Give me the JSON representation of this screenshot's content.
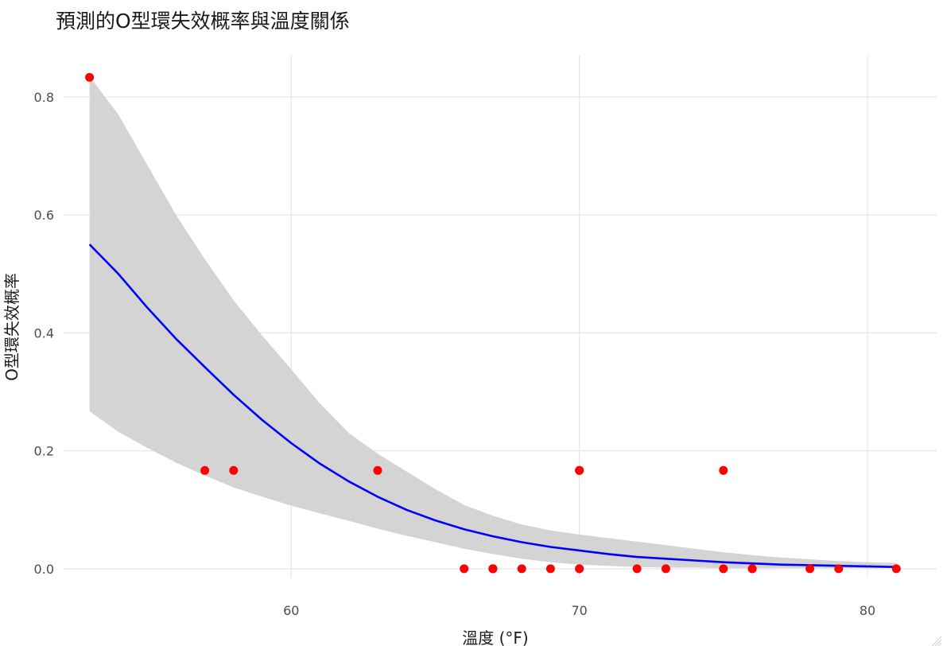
{
  "chart_data": {
    "type": "scatter",
    "title": "預測的O型環失效概率與溫度關係",
    "xlabel": "溫度 (°F)",
    "ylabel": "O型環失效概率",
    "xlim": [
      52.1,
      82.4
    ],
    "ylim": [
      -0.015,
      0.87
    ],
    "x_ticks": [
      60,
      70,
      80
    ],
    "y_ticks": [
      0.0,
      0.2,
      0.4,
      0.6,
      0.8
    ],
    "x_tick_labels": [
      "60",
      "70",
      "80"
    ],
    "y_tick_labels": [
      "0.0",
      "0.2",
      "0.4",
      "0.6",
      "0.8"
    ],
    "grid": true,
    "colors": {
      "points": "#ff0000",
      "fit_line": "#0000ff",
      "ribbon": "#d4d4d4",
      "grid": "#e6e6e6"
    },
    "observed_points": {
      "x": [
        53,
        57,
        58,
        63,
        66,
        67,
        67,
        67,
        68,
        69,
        70,
        70,
        70,
        70,
        72,
        73,
        75,
        75,
        76,
        76,
        78,
        79,
        81
      ],
      "y": [
        0.8333,
        0.1667,
        0.1667,
        0.1667,
        0,
        0,
        0,
        0,
        0,
        0,
        0,
        0,
        0.1667,
        0.1667,
        0,
        0,
        0,
        0.1667,
        0,
        0,
        0,
        0,
        0
      ]
    },
    "fitted_curve": {
      "x": [
        53,
        54,
        55,
        56,
        57,
        58,
        59,
        60,
        61,
        62,
        63,
        64,
        65,
        66,
        67,
        68,
        69,
        70,
        71,
        72,
        73,
        74,
        75,
        76,
        77,
        78,
        79,
        80,
        81
      ],
      "y": [
        0.55,
        0.5,
        0.443,
        0.39,
        0.342,
        0.295,
        0.252,
        0.213,
        0.178,
        0.148,
        0.122,
        0.1,
        0.082,
        0.067,
        0.055,
        0.045,
        0.037,
        0.031,
        0.025,
        0.02,
        0.017,
        0.014,
        0.011,
        0.009,
        0.007,
        0.006,
        0.005,
        0.004,
        0.003
      ],
      "lower": [
        0.267,
        0.232,
        0.205,
        0.18,
        0.158,
        0.138,
        0.122,
        0.107,
        0.094,
        0.081,
        0.068,
        0.056,
        0.045,
        0.034,
        0.025,
        0.017,
        0.011,
        0.007,
        0.005,
        0.003,
        0.002,
        0.002,
        0.001,
        0.001,
        0.001,
        0.001,
        0.001,
        0.001,
        0.001
      ],
      "upper": [
        0.835,
        0.77,
        0.685,
        0.6,
        0.525,
        0.455,
        0.395,
        0.338,
        0.28,
        0.23,
        0.195,
        0.165,
        0.135,
        0.108,
        0.09,
        0.075,
        0.065,
        0.058,
        0.052,
        0.046,
        0.04,
        0.034,
        0.028,
        0.023,
        0.019,
        0.016,
        0.013,
        0.011,
        0.01
      ]
    }
  }
}
